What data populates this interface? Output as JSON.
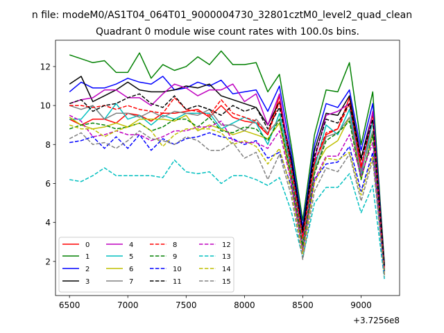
{
  "chart_data": {
    "type": "line",
    "suptitle": "n file: modeM0/AS1T04_064T01_9000004730_32801cztM0_level2_quad_clean",
    "title": "Quadrant 0 module wise count rates with 100.0s bins.",
    "xlabel": "",
    "ylabel": "",
    "offset_label": "+3.7256e8",
    "xlim": [
      6380,
      9330
    ],
    "ylim": [
      0.25,
      13.35
    ],
    "xticks": [
      6500,
      7000,
      7500,
      8000,
      8500,
      9000
    ],
    "yticks": [
      2,
      4,
      6,
      8,
      10,
      12
    ],
    "x": [
      6500,
      6600,
      6700,
      6800,
      6900,
      7000,
      7100,
      7200,
      7300,
      7400,
      7500,
      7600,
      7700,
      7800,
      7900,
      8000,
      8100,
      8200,
      8300,
      8400,
      8500,
      8600,
      8700,
      8800,
      8900,
      9000,
      9100,
      9200
    ],
    "legend_position": "lower-left",
    "series": [
      {
        "name": "0",
        "color": "#ff0000",
        "dash": "solid",
        "values": [
          9.3,
          9.0,
          9.3,
          9.3,
          9.1,
          9.6,
          9.5,
          9.2,
          9.6,
          9.6,
          9.7,
          9.8,
          9.4,
          10.0,
          9.4,
          9.2,
          9.1,
          8.5,
          10.5,
          6.9,
          3.3,
          7.0,
          8.5,
          8.8,
          10.4,
          6.9,
          9.2,
          1.7
        ]
      },
      {
        "name": "1",
        "color": "#008000",
        "dash": "solid",
        "values": [
          12.6,
          12.4,
          12.2,
          12.3,
          11.7,
          11.7,
          12.7,
          11.4,
          12.1,
          11.8,
          12.0,
          12.5,
          12.1,
          12.8,
          12.1,
          12.1,
          12.2,
          10.7,
          11.6,
          8.0,
          4.1,
          8.5,
          10.8,
          10.7,
          12.2,
          8.0,
          10.7,
          1.9
        ]
      },
      {
        "name": "2",
        "color": "#0000ff",
        "dash": "solid",
        "values": [
          10.7,
          11.2,
          10.9,
          10.9,
          11.1,
          11.4,
          11.2,
          11.1,
          11.5,
          10.8,
          10.9,
          11.2,
          11.0,
          11.3,
          10.6,
          10.7,
          10.8,
          9.7,
          11.0,
          7.6,
          3.8,
          8.0,
          10.1,
          9.9,
          10.8,
          7.7,
          10.1,
          1.8
        ]
      },
      {
        "name": "3",
        "color": "#000000",
        "dash": "solid",
        "values": [
          11.1,
          11.5,
          10.2,
          10.5,
          10.8,
          11.2,
          10.8,
          10.7,
          10.7,
          10.8,
          11.0,
          10.9,
          11.1,
          10.5,
          10.3,
          10.1,
          9.9,
          9.0,
          10.2,
          7.3,
          3.6,
          7.7,
          9.6,
          9.5,
          10.5,
          7.3,
          9.6,
          1.8
        ]
      },
      {
        "name": "4",
        "color": "#bf00bf",
        "dash": "solid",
        "values": [
          10.1,
          10.3,
          10.4,
          10.8,
          10.8,
          10.4,
          10.4,
          10.0,
          10.6,
          11.1,
          10.9,
          10.5,
          10.8,
          10.8,
          11.1,
          10.2,
          10.6,
          9.0,
          10.6,
          7.0,
          3.3,
          7.2,
          9.5,
          9.7,
          10.1,
          6.7,
          9.7,
          1.6
        ]
      },
      {
        "name": "5",
        "color": "#00bfbf",
        "dash": "solid",
        "values": [
          9.3,
          9.3,
          10.0,
          9.3,
          10.1,
          9.3,
          9.5,
          9.0,
          9.5,
          9.3,
          9.6,
          9.6,
          9.6,
          8.8,
          9.1,
          9.4,
          9.1,
          8.0,
          9.6,
          6.8,
          2.9,
          6.8,
          9.0,
          8.5,
          9.8,
          6.4,
          9.2,
          1.5
        ]
      },
      {
        "name": "6",
        "color": "#bfbf00",
        "dash": "solid",
        "values": [
          9.4,
          9.0,
          8.8,
          8.9,
          9.1,
          8.9,
          9.3,
          9.3,
          9.3,
          9.2,
          9.5,
          8.7,
          9.0,
          8.8,
          8.5,
          8.7,
          8.5,
          8.3,
          9.1,
          6.2,
          2.6,
          6.8,
          7.8,
          8.2,
          9.4,
          6.2,
          8.5,
          1.4
        ]
      },
      {
        "name": "7",
        "color": "#808080",
        "dash": "solid",
        "values": [
          10.0,
          9.8,
          10.0,
          9.3,
          9.6,
          9.6,
          9.4,
          9.7,
          9.4,
          9.7,
          9.6,
          9.5,
          9.8,
          9.0,
          9.0,
          8.7,
          9.3,
          8.6,
          9.3,
          6.5,
          3.0,
          6.6,
          8.4,
          8.6,
          9.4,
          6.6,
          8.7,
          1.5
        ]
      },
      {
        "name": "8",
        "color": "#ff0000",
        "dash": "dashed",
        "values": [
          10.0,
          10.0,
          9.9,
          10.0,
          9.8,
          10.0,
          9.8,
          9.7,
          9.6,
          10.4,
          9.8,
          9.7,
          9.5,
          10.3,
          9.6,
          9.4,
          9.2,
          8.5,
          10.2,
          6.8,
          3.2,
          7.1,
          8.6,
          8.8,
          10.1,
          6.8,
          9.4,
          1.6
        ]
      },
      {
        "name": "9",
        "color": "#008000",
        "dash": "dashed",
        "values": [
          8.8,
          9.0,
          9.1,
          9.0,
          8.8,
          8.9,
          9.1,
          8.7,
          8.9,
          9.3,
          9.3,
          8.9,
          9.4,
          8.7,
          8.6,
          8.9,
          8.8,
          8.2,
          9.3,
          6.4,
          2.8,
          6.5,
          8.2,
          8.6,
          9.2,
          6.2,
          8.5,
          1.5
        ]
      },
      {
        "name": "10",
        "color": "#0000ff",
        "dash": "dashed",
        "values": [
          8.1,
          8.2,
          8.4,
          7.8,
          8.4,
          7.8,
          8.5,
          7.7,
          8.3,
          8.0,
          8.3,
          8.4,
          8.6,
          8.4,
          8.3,
          8.0,
          8.2,
          7.3,
          7.6,
          5.9,
          2.5,
          6.2,
          7.0,
          7.1,
          7.9,
          5.6,
          7.6,
          1.3
        ]
      },
      {
        "name": "11",
        "color": "#000000",
        "dash": "dashed",
        "values": [
          10.1,
          10.3,
          9.7,
          10.0,
          10.1,
          10.4,
          10.6,
          10.1,
          9.9,
          10.5,
          9.8,
          10.0,
          9.8,
          9.5,
          10.0,
          9.7,
          9.9,
          8.8,
          9.9,
          7.2,
          3.5,
          7.4,
          9.3,
          9.1,
          10.1,
          7.2,
          9.3,
          1.7
        ]
      },
      {
        "name": "12",
        "color": "#bf00bf",
        "dash": "dashed",
        "values": [
          9.5,
          9.2,
          8.4,
          8.5,
          8.7,
          8.5,
          8.5,
          8.2,
          8.4,
          8.7,
          8.7,
          8.9,
          8.9,
          9.2,
          8.2,
          8.1,
          8.1,
          7.8,
          8.7,
          6.1,
          2.5,
          6.2,
          7.4,
          7.4,
          8.5,
          6.4,
          8.1,
          1.3
        ]
      },
      {
        "name": "13",
        "color": "#00bfbf",
        "dash": "dashed",
        "values": [
          6.2,
          6.1,
          6.4,
          6.8,
          6.4,
          6.4,
          6.4,
          6.4,
          6.3,
          7.2,
          6.6,
          6.5,
          6.6,
          6.0,
          6.4,
          6.4,
          6.2,
          5.9,
          6.3,
          4.6,
          2.2,
          5.0,
          5.8,
          5.8,
          6.5,
          4.5,
          5.9,
          1.1
        ]
      },
      {
        "name": "14",
        "color": "#bfbf00",
        "dash": "dashed",
        "values": [
          9.0,
          8.8,
          8.8,
          8.4,
          8.7,
          8.9,
          9.1,
          8.7,
          7.9,
          8.5,
          8.8,
          8.8,
          8.8,
          8.6,
          8.0,
          8.2,
          7.9,
          7.0,
          7.8,
          5.7,
          2.4,
          6.0,
          7.3,
          7.2,
          7.6,
          5.4,
          7.4,
          1.3
        ]
      },
      {
        "name": "15",
        "color": "#808080",
        "dash": "dashed",
        "values": [
          8.3,
          8.6,
          8.0,
          8.1,
          7.8,
          8.2,
          8.7,
          8.3,
          8.2,
          8.0,
          8.4,
          8.2,
          7.7,
          7.7,
          8.1,
          7.3,
          7.6,
          6.2,
          7.5,
          5.4,
          2.1,
          5.6,
          6.8,
          6.6,
          7.5,
          5.1,
          7.2,
          1.2
        ]
      }
    ]
  }
}
